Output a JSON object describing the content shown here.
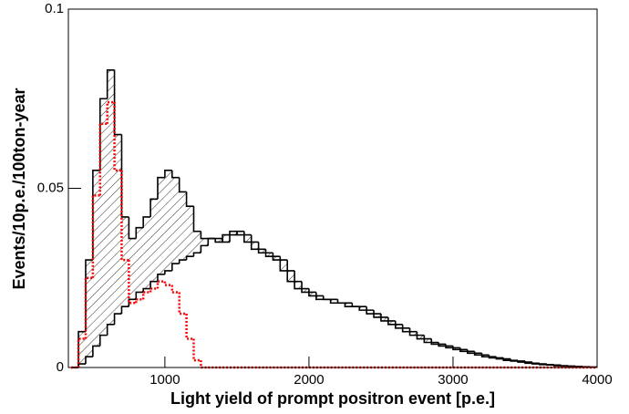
{
  "chart_data": {
    "type": "histogram",
    "xlabel": "Light yield of prompt positron event [p.e.]",
    "ylabel": "Events/10p.e./100ton-year",
    "xlim": [
      330,
      4000
    ],
    "ylim": [
      0,
      0.1
    ],
    "xticks": [
      1000,
      2000,
      3000,
      4000
    ],
    "yticks": [
      0,
      0.05,
      0.1
    ],
    "bins": [
      350,
      400,
      450,
      500,
      550,
      600,
      650,
      700,
      750,
      800,
      850,
      900,
      950,
      1000,
      1050,
      1100,
      1150,
      1200,
      1250,
      1300,
      1350,
      1400,
      1450,
      1500,
      1550,
      1600,
      1650,
      1700,
      1750,
      1800,
      1850,
      1900,
      1950,
      2000,
      2050,
      2100,
      2150,
      2200,
      2250,
      2300,
      2350,
      2400,
      2450,
      2500,
      2550,
      2600,
      2650,
      2700,
      2750,
      2800,
      2850,
      2900,
      2950,
      3000,
      3050,
      3100,
      3150,
      3200,
      3250,
      3300,
      3350,
      3400,
      3450,
      3500,
      3550,
      3600,
      3650,
      3700,
      3750,
      3800,
      3850,
      3900,
      3950,
      4000
    ],
    "series": [
      {
        "color": "#000000",
        "style": "solid",
        "values": [
          0,
          0.01,
          0.03,
          0.055,
          0.075,
          0.083,
          0.065,
          0.042,
          0.036,
          0.039,
          0.042,
          0.047,
          0.053,
          0.055,
          0.053,
          0.049,
          0.045,
          0.038,
          0.036,
          0.036,
          0.035,
          0.037,
          0.038,
          0.037,
          0.035,
          0.033,
          0.032,
          0.031,
          0.03,
          0.027,
          0.024,
          0.022,
          0.021,
          0.02,
          0.019,
          0.019,
          0.018,
          0.018,
          0.017,
          0.017,
          0.016,
          0.015,
          0.014,
          0.013,
          0.012,
          0.011,
          0.01,
          0.009,
          0.008,
          0.007,
          0.0065,
          0.006,
          0.0055,
          0.005,
          0.0045,
          0.004,
          0.0035,
          0.003,
          0.0027,
          0.0024,
          0.002,
          0.0018,
          0.0015,
          0.0012,
          0.001,
          0.0008,
          0.0007,
          0.0005,
          0.0004,
          0.0003,
          0.0002,
          0.0001,
          0.0001
        ]
      },
      {
        "color": "#000000",
        "style": "solid",
        "values": [
          0,
          0.001,
          0.003,
          0.006,
          0.009,
          0.012,
          0.015,
          0.017,
          0.019,
          0.021,
          0.022,
          0.024,
          0.026,
          0.027,
          0.029,
          0.03,
          0.031,
          0.032,
          0.034,
          0.036,
          0.036,
          0.035,
          0.037,
          0.038,
          0.037,
          0.035,
          0.033,
          0.032,
          0.031,
          0.03,
          0.027,
          0.024,
          0.022,
          0.021,
          0.02,
          0.019,
          0.019,
          0.018,
          0.018,
          0.017,
          0.017,
          0.016,
          0.015,
          0.014,
          0.013,
          0.012,
          0.011,
          0.01,
          0.009,
          0.008,
          0.007,
          0.0065,
          0.006,
          0.0055,
          0.005,
          0.0045,
          0.004,
          0.0035,
          0.003,
          0.0027,
          0.0024,
          0.002,
          0.0018,
          0.0015,
          0.0012,
          0.001,
          0.0008,
          0.0007,
          0.0005,
          0.0004,
          0.0003,
          0.0002,
          0.0001
        ]
      },
      {
        "color": "#ff0000",
        "style": "dotted",
        "values": [
          0,
          0.008,
          0.025,
          0.048,
          0.068,
          0.074,
          0.055,
          0.03,
          0.018,
          0.019,
          0.021,
          0.022,
          0.024,
          0.023,
          0.021,
          0.015,
          0.008,
          0.002,
          0,
          0,
          0,
          0,
          0,
          0,
          0,
          0,
          0,
          0,
          0,
          0,
          0,
          0,
          0,
          0,
          0,
          0,
          0,
          0,
          0,
          0,
          0,
          0,
          0,
          0,
          0,
          0,
          0,
          0,
          0,
          0,
          0,
          0,
          0,
          0,
          0,
          0,
          0,
          0,
          0,
          0,
          0,
          0,
          0,
          0,
          0,
          0,
          0,
          0,
          0,
          0,
          0,
          0,
          0
        ]
      }
    ],
    "hatch_between": [
      0,
      1
    ]
  }
}
